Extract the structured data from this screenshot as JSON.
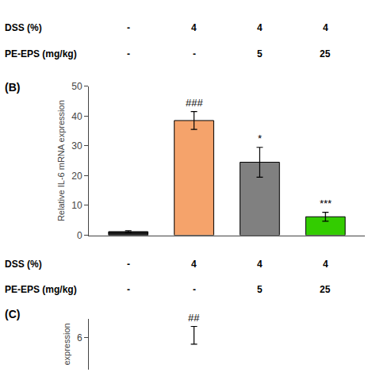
{
  "chart_data": [
    {
      "type": "bar",
      "title": "(B)",
      "categories": [
        null,
        null,
        null,
        null
      ],
      "values": [
        1.2,
        38.5,
        24.5,
        6.2
      ],
      "errors": [
        0.3,
        3.0,
        5.0,
        1.5
      ],
      "colors": [
        "#1a1a1a",
        "#F5A36B",
        "#808080",
        "#33CC00"
      ],
      "significance_labels": [
        null,
        "###",
        "*",
        "***"
      ],
      "ylabel": "Relative IL-6 mRNA expression",
      "ylim": [
        0,
        50
      ],
      "yticks": [
        0,
        10,
        20,
        30,
        40,
        50
      ],
      "grid": false,
      "tick_labels": "y",
      "tables": [
        [
          {
            "label": "DSS (%)",
            "values": [
              "-",
              "4",
              "4",
              "4"
            ]
          },
          {
            "label": "PE-EPS (mg/kg)",
            "values": [
              "-",
              "-",
              "5",
              "25"
            ]
          }
        ],
        [
          {
            "label": "DSS (%)",
            "values": [
              "-",
              "4",
              "4",
              "4"
            ]
          },
          {
            "label": "PE-EPS (mg/kg)",
            "values": [
              "-",
              "-",
              "5",
              "25"
            ]
          }
        ]
      ]
    },
    {
      "type": "errorbar",
      "title": "(C)",
      "categories": [
        null,
        null,
        null,
        null
      ],
      "values": [
        null,
        6.2,
        null,
        null
      ],
      "errors": [
        null,
        0.7,
        null,
        null
      ],
      "significance_labels": [
        null,
        "##",
        null,
        null
      ],
      "ylabel": "expression",
      "ylim": [
        3.5,
        7.5
      ],
      "yticks": [
        6
      ],
      "grid": false,
      "tick_labels": "y"
    }
  ]
}
